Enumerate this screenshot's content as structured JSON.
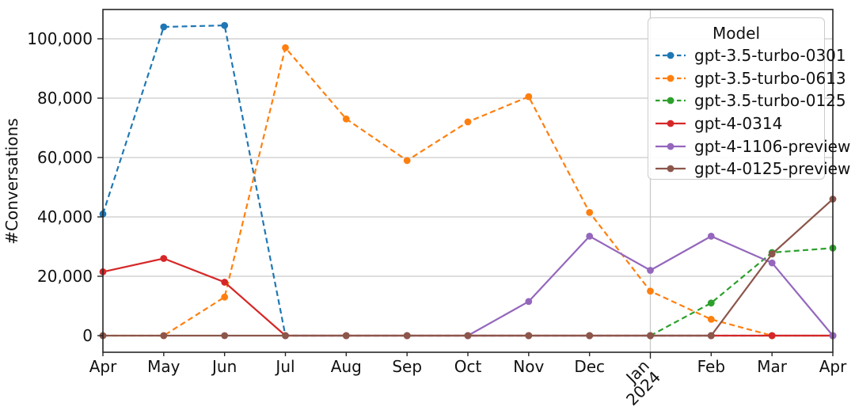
{
  "chart_data": {
    "type": "line",
    "title": "",
    "xlabel": "",
    "ylabel": "#Conversations",
    "categories": [
      "Apr",
      "May",
      "Jun",
      "Jul",
      "Aug",
      "Sep",
      "Oct",
      "Nov",
      "Dec",
      "Jan\n2024",
      "Feb",
      "Mar",
      "Apr"
    ],
    "y_ticks": [
      0,
      20000,
      40000,
      60000,
      80000,
      100000
    ],
    "y_tick_labels": [
      "0",
      "20,000",
      "40,000",
      "60,000",
      "80,000",
      "100,000"
    ],
    "ylim": [
      -5500,
      110000
    ],
    "grid": {
      "horizontal": true,
      "vertical_year_line_at": "Jan\n2024"
    },
    "legend": {
      "title": "Model",
      "location": "upper-right"
    },
    "series": [
      {
        "name": "gpt-3.5-turbo-0301",
        "color": "#1f77b4",
        "style": "dashed",
        "values": [
          41000,
          104000,
          104500,
          0,
          0,
          0,
          0,
          0,
          0,
          0,
          0,
          0,
          0
        ]
      },
      {
        "name": "gpt-3.5-turbo-0613",
        "color": "#ff7f0e",
        "style": "dashed",
        "values": [
          0,
          0,
          13000,
          97000,
          73000,
          59000,
          72000,
          80500,
          41500,
          15000,
          5500,
          0,
          0
        ]
      },
      {
        "name": "gpt-3.5-turbo-0125",
        "color": "#2ca02c",
        "style": "dashed",
        "values": [
          null,
          null,
          null,
          null,
          null,
          null,
          null,
          null,
          null,
          0,
          11000,
          28000,
          29500
        ]
      },
      {
        "name": "gpt-4-0314",
        "color": "#d62728",
        "style": "solid",
        "values": [
          21500,
          26000,
          18000,
          0,
          0,
          0,
          0,
          0,
          0,
          0,
          0,
          0,
          0
        ]
      },
      {
        "name": "gpt-4-1106-preview",
        "color": "#9467bd",
        "style": "solid",
        "values": [
          null,
          null,
          null,
          null,
          null,
          null,
          0,
          11500,
          33500,
          22000,
          33500,
          24500,
          0
        ]
      },
      {
        "name": "gpt-4-0125-preview",
        "color": "#8c564b",
        "style": "solid",
        "values": [
          0,
          0,
          0,
          0,
          0,
          0,
          0,
          0,
          0,
          0,
          0,
          27500,
          46000
        ]
      }
    ]
  }
}
